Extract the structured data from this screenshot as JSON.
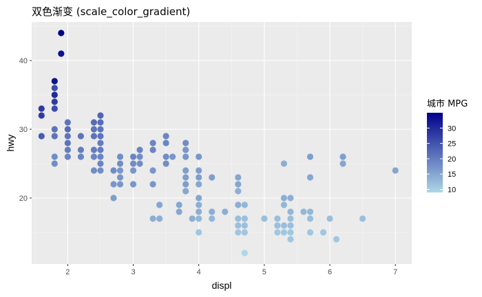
{
  "chart_data": {
    "type": "scatter",
    "title": "双色渐变 (scale_color_gradient)",
    "xlabel": "displ",
    "ylabel": "hwy",
    "xlim": [
      1.45,
      7.25
    ],
    "ylim": [
      10.4,
      45.6
    ],
    "x_ticks": [
      2,
      3,
      4,
      5,
      6,
      7
    ],
    "y_ticks": [
      20,
      30,
      40
    ],
    "grid": true,
    "legend": {
      "title": "城市 MPG",
      "position": "right",
      "ticks": [
        10,
        15,
        20,
        25,
        30
      ],
      "range": [
        9,
        35
      ],
      "low_color": "#ADD8E6",
      "high_color": "#00008B"
    },
    "colors": {
      "panel_background": "#EBEBEB",
      "grid_major": "#FFFFFF",
      "grid_minor": "#F5F5F5"
    },
    "points": [
      [
        1.6,
        33,
        28
      ],
      [
        1.6,
        32,
        28
      ],
      [
        1.6,
        29,
        24
      ],
      [
        1.8,
        37,
        33
      ],
      [
        1.8,
        36,
        26
      ],
      [
        1.8,
        35,
        30
      ],
      [
        1.8,
        34,
        28
      ],
      [
        1.8,
        33,
        26
      ],
      [
        1.8,
        30,
        21
      ],
      [
        1.8,
        29,
        21
      ],
      [
        1.8,
        26,
        18
      ],
      [
        1.8,
        25,
        18
      ],
      [
        1.9,
        44,
        35
      ],
      [
        1.9,
        41,
        33
      ],
      [
        2.0,
        31,
        21
      ],
      [
        2.0,
        30,
        22
      ],
      [
        2.0,
        29,
        21
      ],
      [
        2.0,
        28,
        21
      ],
      [
        2.0,
        27,
        20
      ],
      [
        2.0,
        26,
        19
      ],
      [
        2.2,
        29,
        21
      ],
      [
        2.2,
        27,
        20
      ],
      [
        2.2,
        26,
        19
      ],
      [
        2.4,
        31,
        22
      ],
      [
        2.4,
        30,
        21
      ],
      [
        2.4,
        29,
        21
      ],
      [
        2.4,
        27,
        20
      ],
      [
        2.4,
        26,
        19
      ],
      [
        2.4,
        24,
        18
      ],
      [
        2.5,
        32,
        23
      ],
      [
        2.5,
        31,
        22
      ],
      [
        2.5,
        30,
        21
      ],
      [
        2.5,
        29,
        21
      ],
      [
        2.5,
        28,
        20
      ],
      [
        2.5,
        27,
        20
      ],
      [
        2.5,
        26,
        19
      ],
      [
        2.5,
        25,
        19
      ],
      [
        2.5,
        24,
        18
      ],
      [
        2.7,
        24,
        18
      ],
      [
        2.7,
        22,
        17
      ],
      [
        2.7,
        20,
        16
      ],
      [
        2.8,
        26,
        18
      ],
      [
        2.8,
        25,
        18
      ],
      [
        2.8,
        24,
        17
      ],
      [
        2.8,
        23,
        17
      ],
      [
        2.8,
        22,
        17
      ],
      [
        3.0,
        26,
        19
      ],
      [
        3.0,
        25,
        18
      ],
      [
        3.0,
        24,
        17
      ],
      [
        3.0,
        22,
        17
      ],
      [
        3.1,
        27,
        19
      ],
      [
        3.1,
        26,
        18
      ],
      [
        3.1,
        25,
        18
      ],
      [
        3.3,
        28,
        19
      ],
      [
        3.3,
        27,
        19
      ],
      [
        3.3,
        24,
        17
      ],
      [
        3.3,
        22,
        17
      ],
      [
        3.3,
        17,
        14
      ],
      [
        3.4,
        19,
        15
      ],
      [
        3.4,
        17,
        14
      ],
      [
        3.5,
        29,
        19
      ],
      [
        3.5,
        28,
        19
      ],
      [
        3.5,
        26,
        18
      ],
      [
        3.5,
        25,
        18
      ],
      [
        3.6,
        26,
        17
      ],
      [
        3.7,
        19,
        15
      ],
      [
        3.7,
        18,
        15
      ],
      [
        3.8,
        28,
        18
      ],
      [
        3.8,
        27,
        17
      ],
      [
        3.8,
        26,
        17
      ],
      [
        3.8,
        24,
        16
      ],
      [
        3.8,
        23,
        16
      ],
      [
        3.8,
        22,
        16
      ],
      [
        3.8,
        21,
        15
      ],
      [
        3.9,
        17,
        14
      ],
      [
        4.0,
        26,
        17
      ],
      [
        4.0,
        24,
        16
      ],
      [
        4.0,
        23,
        16
      ],
      [
        4.0,
        22,
        15
      ],
      [
        4.0,
        20,
        15
      ],
      [
        4.0,
        19,
        14
      ],
      [
        4.0,
        18,
        14
      ],
      [
        4.0,
        17,
        13
      ],
      [
        4.0,
        15,
        11
      ],
      [
        4.2,
        23,
        16
      ],
      [
        4.2,
        18,
        14
      ],
      [
        4.2,
        17,
        13
      ],
      [
        4.4,
        18,
        14
      ],
      [
        4.6,
        23,
        15
      ],
      [
        4.6,
        22,
        15
      ],
      [
        4.6,
        21,
        14
      ],
      [
        4.6,
        19,
        14
      ],
      [
        4.6,
        17,
        12
      ],
      [
        4.6,
        16,
        12
      ],
      [
        4.6,
        15,
        11
      ],
      [
        4.7,
        19,
        13
      ],
      [
        4.7,
        17,
        12
      ],
      [
        4.7,
        16,
        12
      ],
      [
        4.7,
        15,
        11
      ],
      [
        4.7,
        12,
        9
      ],
      [
        5.0,
        17,
        12
      ],
      [
        5.2,
        17,
        12
      ],
      [
        5.2,
        16,
        12
      ],
      [
        5.2,
        15,
        11
      ],
      [
        5.3,
        25,
        14
      ],
      [
        5.3,
        20,
        14
      ],
      [
        5.3,
        19,
        13
      ],
      [
        5.3,
        16,
        12
      ],
      [
        5.3,
        15,
        11
      ],
      [
        5.4,
        20,
        14
      ],
      [
        5.4,
        18,
        13
      ],
      [
        5.4,
        17,
        12
      ],
      [
        5.4,
        16,
        12
      ],
      [
        5.4,
        15,
        11
      ],
      [
        5.4,
        14,
        11
      ],
      [
        5.6,
        18,
        13
      ],
      [
        5.7,
        26,
        16
      ],
      [
        5.7,
        23,
        15
      ],
      [
        5.7,
        18,
        13
      ],
      [
        5.7,
        17,
        12
      ],
      [
        5.7,
        15,
        11
      ],
      [
        5.9,
        15,
        11
      ],
      [
        6.0,
        17,
        12
      ],
      [
        6.1,
        14,
        11
      ],
      [
        6.2,
        26,
        16
      ],
      [
        6.2,
        25,
        15
      ],
      [
        6.5,
        17,
        12
      ],
      [
        7.0,
        24,
        15
      ]
    ]
  }
}
